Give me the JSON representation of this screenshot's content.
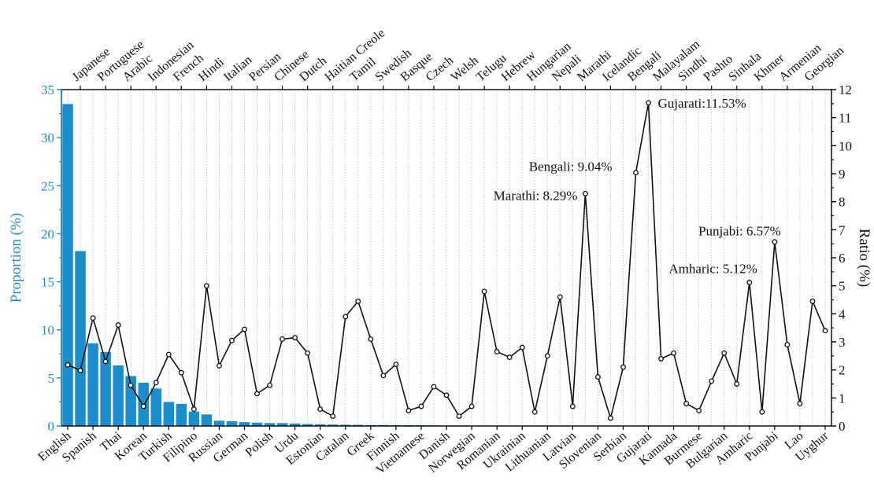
{
  "chart_data": {
    "type": "bar",
    "categories": [
      "English",
      "Japanese",
      "Spanish",
      "Portuguese",
      "Thai",
      "Arabic",
      "Korean",
      "Indonesian",
      "Turkish",
      "French",
      "Filipino",
      "Hindi",
      "Russian",
      "Italian",
      "German",
      "Persian",
      "Polish",
      "Chinese",
      "Urdu",
      "Dutch",
      "Estonian",
      "Haitian Creole",
      "Catalan",
      "Tamil",
      "Greek",
      "Swedish",
      "Finnish",
      "Basque",
      "Vietnamese",
      "Czech",
      "Danish",
      "Welsh",
      "Norwegian",
      "Telugu",
      "Romanian",
      "Hebrew",
      "Ukrainian",
      "Hungarian",
      "Lithuanian",
      "Nepali",
      "Latvian",
      "Marathi",
      "Slovenian",
      "Icelandic",
      "Serbian",
      "Bengali",
      "Gujarati",
      "Malayalam",
      "Kannada",
      "Sindhi",
      "Burmese",
      "Pashto",
      "Bulgarian",
      "Sinhala",
      "Amharic",
      "Khmer",
      "Punjabi",
      "Armenian",
      "Lao",
      "Georgian",
      "Uyghur"
    ],
    "series": [
      {
        "axis": "left",
        "type": "bar",
        "color": "#1b8ccc",
        "values": [
          33.5,
          18.2,
          8.6,
          7.7,
          6.3,
          5.2,
          4.5,
          3.9,
          2.5,
          2.3,
          1.5,
          1.2,
          0.55,
          0.5,
          0.4,
          0.35,
          0.3,
          0.3,
          0.25,
          0.2,
          0.18,
          0.15,
          0.13,
          0.12,
          0.1,
          0.1,
          0.09,
          0.08,
          0.07,
          0.06,
          0.05,
          0.05,
          0.04,
          0.04,
          0.04,
          0.03,
          0.03,
          0.03,
          0.03,
          0.03,
          0.02,
          0.02,
          0.02,
          0.02,
          0.02,
          0.02,
          0.02,
          0.02,
          0.01,
          0.01,
          0.01,
          0.01,
          0.01,
          0.01,
          0.01,
          0.01,
          0.01,
          0.01,
          0.01,
          0.01,
          0.01
        ]
      },
      {
        "axis": "right",
        "type": "line",
        "color": "#111111",
        "values": [
          2.18,
          1.98,
          3.85,
          2.3,
          3.6,
          1.45,
          0.7,
          1.55,
          2.55,
          1.9,
          0.6,
          5.0,
          2.15,
          3.05,
          3.45,
          1.15,
          1.45,
          3.1,
          3.15,
          2.6,
          0.6,
          0.35,
          3.9,
          4.45,
          3.1,
          1.8,
          2.2,
          0.55,
          0.7,
          1.4,
          1.1,
          0.35,
          0.7,
          4.8,
          2.65,
          2.45,
          2.8,
          0.5,
          2.5,
          4.6,
          0.7,
          8.29,
          1.75,
          0.28,
          2.1,
          9.04,
          11.53,
          2.4,
          2.6,
          0.8,
          0.55,
          1.6,
          2.6,
          1.5,
          5.12,
          0.5,
          6.57,
          2.9,
          0.8,
          4.45,
          3.4
        ]
      }
    ],
    "annotations": [
      {
        "index": 46,
        "text": "Gujarati:11.53%"
      },
      {
        "index": 45,
        "text": "Bengali: 9.04%"
      },
      {
        "index": 41,
        "text": "Marathi: 8.29%"
      },
      {
        "index": 56,
        "text": "Punjabi: 6.57%"
      },
      {
        "index": 54,
        "text": "Amharic: 5.12%"
      }
    ],
    "ylabel": "Proportion (%)",
    "ylabel_right": "Ratio (%)",
    "ylim": [
      0,
      35
    ],
    "yticks": [
      0,
      5,
      10,
      15,
      20,
      25,
      30,
      35
    ],
    "ylim_right": [
      0,
      12
    ],
    "yticks_right": [
      0,
      1,
      2,
      3,
      4,
      5,
      6,
      7,
      8,
      9,
      10,
      11,
      12
    ],
    "grid": "vertical dotted",
    "colors": {
      "left_axis": "#1b8ccc",
      "bars": "#1b8ccc",
      "line": "#111111"
    }
  }
}
